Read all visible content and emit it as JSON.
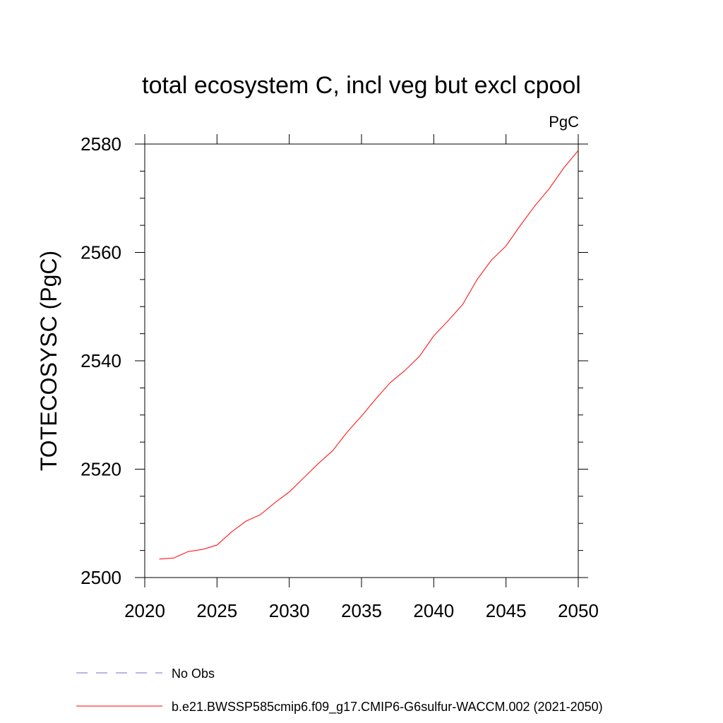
{
  "chart_data": {
    "type": "line",
    "title": "total ecosystem C, incl veg but excl cpool",
    "units": "PgC",
    "ylabel": "TOTECOSYSC  (PgC)",
    "xlabel": "",
    "xlim": [
      2020,
      2050
    ],
    "ylim": [
      2500,
      2580
    ],
    "x_ticks": [
      2020,
      2025,
      2030,
      2035,
      2040,
      2045,
      2050
    ],
    "y_ticks": [
      2500,
      2520,
      2540,
      2560,
      2580
    ],
    "grid": false,
    "legend_position": "bottom-left",
    "series": [
      {
        "name": "No Obs",
        "color": "#7b68c8",
        "style": "dashed",
        "x": [],
        "y": []
      },
      {
        "name": "b.e21.BWSSP585cmip6.f09_g17.CMIP6-G6sulfur-WACCM.002 (2021-2050)",
        "color": "#ff0000",
        "style": "solid",
        "x": [
          2021,
          2022,
          2023,
          2024,
          2025,
          2026,
          2027,
          2028,
          2029,
          2030,
          2031,
          2032,
          2033,
          2034,
          2035,
          2036,
          2037,
          2038,
          2039,
          2040,
          2041,
          2042,
          2043,
          2044,
          2045,
          2046,
          2047,
          2048,
          2049,
          2050
        ],
        "y": [
          2503.4,
          2503.6,
          2504.8,
          2505.2,
          2506.0,
          2508.4,
          2510.4,
          2511.6,
          2513.8,
          2515.8,
          2518.4,
          2521.0,
          2523.4,
          2526.8,
          2529.8,
          2533.0,
          2536.0,
          2538.2,
          2540.8,
          2544.6,
          2547.4,
          2550.4,
          2555.0,
          2558.6,
          2561.2,
          2565.0,
          2568.6,
          2571.8,
          2575.6,
          2578.8
        ]
      }
    ]
  }
}
